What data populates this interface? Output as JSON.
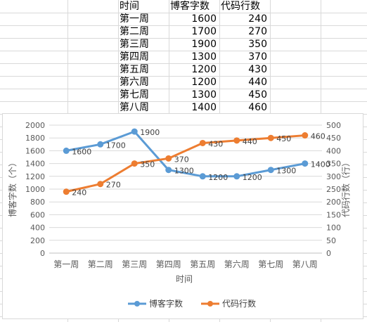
{
  "spreadsheet": {
    "headers": [
      "时间",
      "博客字数",
      "代码行数"
    ],
    "rows": [
      [
        "第一周",
        "1600",
        "240"
      ],
      [
        "第二周",
        "1700",
        "270"
      ],
      [
        "第三周",
        "1900",
        "350"
      ],
      [
        "第四周",
        "1300",
        "370"
      ],
      [
        "第五周",
        "1200",
        "430"
      ],
      [
        "第六周",
        "1200",
        "440"
      ],
      [
        "第七周",
        "1300",
        "450"
      ],
      [
        "第八周",
        "1400",
        "460"
      ]
    ]
  },
  "chart_data": {
    "type": "line",
    "xlabel": "时间",
    "ylabel_left": "博客字数（个）",
    "ylabel_right": "代码行数（行）",
    "categories": [
      "第一周",
      "第二周",
      "第三周",
      "第四周",
      "第五周",
      "第六周",
      "第七周",
      "第八周"
    ],
    "ylim_left": [
      0,
      2000
    ],
    "ylim_right": [
      0,
      500
    ],
    "left_ticks": [
      "0",
      "200",
      "400",
      "600",
      "800",
      "1000",
      "1200",
      "1400",
      "1600",
      "1800",
      "2000"
    ],
    "right_ticks": [
      "0",
      "50",
      "100",
      "150",
      "200",
      "250",
      "300",
      "350",
      "400",
      "450",
      "500"
    ],
    "series": [
      {
        "name": "博客字数",
        "axis": "left",
        "color": "#5b9bd5",
        "values": [
          1600,
          1700,
          1900,
          1300,
          1200,
          1200,
          1300,
          1400
        ],
        "labels": [
          "1600",
          "1700",
          "1900",
          "1300",
          "1200",
          "1200",
          "1300",
          "1400"
        ]
      },
      {
        "name": "代码行数",
        "axis": "right",
        "color": "#ed7d31",
        "values": [
          240,
          270,
          350,
          370,
          430,
          440,
          450,
          460
        ],
        "labels": [
          "240",
          "270",
          "350",
          "370",
          "430",
          "440",
          "450",
          "460"
        ]
      }
    ],
    "grid": true,
    "legend": "bottom"
  }
}
